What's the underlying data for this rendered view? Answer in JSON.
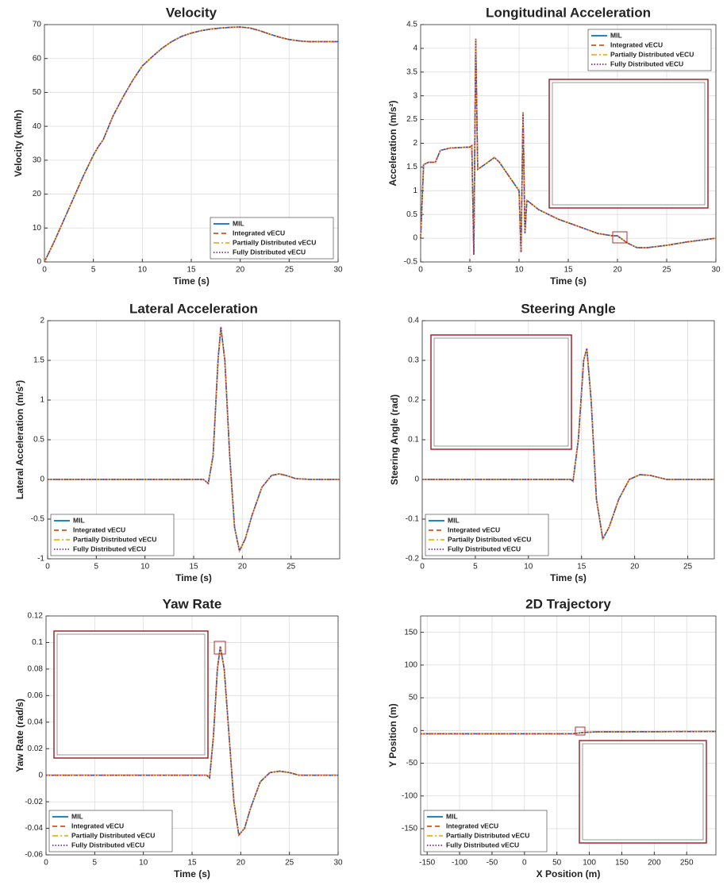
{
  "chart_data": [
    {
      "type": "line",
      "title": "Velocity",
      "xlabel": "Time (s)",
      "ylabel": "Velocity (km/h)",
      "xlim": [
        0,
        30
      ],
      "ylim": [
        0,
        70
      ],
      "xticks": [
        0,
        5,
        10,
        15,
        20,
        25,
        30
      ],
      "yticks": [
        0,
        10,
        20,
        30,
        40,
        50,
        60,
        70
      ],
      "grid": true,
      "legend": "southeast",
      "x": [
        0,
        1,
        2,
        3,
        4,
        5,
        5.5,
        6,
        7,
        8,
        9,
        10,
        11,
        12,
        13,
        14,
        15,
        16,
        17,
        18,
        19,
        20,
        21,
        22,
        23,
        24,
        25,
        26,
        27,
        28,
        29,
        30
      ],
      "series": [
        {
          "name": "MIL",
          "color": "#0072bd",
          "style": "solid",
          "values": [
            0,
            6,
            12.5,
            19,
            25.5,
            31.5,
            34,
            36,
            43,
            48.5,
            53.5,
            57.8,
            60.5,
            63,
            65,
            66.5,
            67.5,
            68.2,
            68.7,
            69,
            69.2,
            69.3,
            69,
            68.2,
            67.2,
            66.3,
            65.6,
            65.2,
            65,
            65,
            65,
            65
          ]
        },
        {
          "name": "Integrated vECU",
          "color": "#d95319",
          "style": "dashed",
          "values": [
            0,
            6,
            12.5,
            19,
            25.5,
            31.5,
            34,
            36,
            43,
            48.5,
            53.5,
            57.8,
            60.5,
            63,
            65,
            66.5,
            67.5,
            68.2,
            68.7,
            69,
            69.2,
            69.3,
            69,
            68.2,
            67.2,
            66.3,
            65.6,
            65.2,
            65,
            65,
            65,
            65
          ]
        },
        {
          "name": "Partially Distributed vECU",
          "color": "#edb120",
          "style": "dashdot",
          "values": [
            0,
            6,
            12.5,
            19,
            25.5,
            31.5,
            34,
            36,
            43,
            48.5,
            53.5,
            57.8,
            60.5,
            63,
            65,
            66.5,
            67.5,
            68.2,
            68.7,
            69,
            69.2,
            69.3,
            69,
            68.2,
            67.2,
            66.3,
            65.6,
            65.2,
            65,
            65,
            65,
            65
          ]
        },
        {
          "name": "Fully Distributed vECU",
          "color": "#7e2f8e",
          "style": "dotted",
          "values": [
            0,
            6,
            12.5,
            19,
            25.5,
            31.5,
            34,
            36,
            43,
            48.5,
            53.5,
            57.8,
            60.5,
            63,
            65,
            66.5,
            67.5,
            68.2,
            68.7,
            69,
            69.2,
            69.3,
            69,
            68.2,
            67.2,
            66.3,
            65.6,
            65.2,
            65,
            65,
            65,
            65
          ]
        }
      ]
    },
    {
      "type": "line",
      "title": "Longitudinal Acceleration",
      "xlabel": "Time (s)",
      "ylabel": "Acceleration (m/s²)",
      "xlim": [
        0,
        30
      ],
      "ylim": [
        -0.5,
        4.5
      ],
      "xticks": [
        0,
        5,
        10,
        15,
        20,
        25,
        30
      ],
      "yticks": [
        -0.5,
        0,
        0.5,
        1,
        1.5,
        2,
        2.5,
        3,
        3.5,
        4,
        4.5
      ],
      "grid": true,
      "legend": "northeast",
      "x": [
        0,
        0.3,
        0.8,
        1.5,
        2,
        3,
        5,
        5.2,
        5.4,
        5.6,
        5.8,
        6.5,
        7.5,
        8,
        9,
        10,
        10.2,
        10.4,
        10.6,
        10.8,
        12,
        14,
        16,
        18,
        19.5,
        20,
        21,
        22,
        23,
        25,
        27,
        30
      ],
      "series": [
        {
          "name": "MIL",
          "color": "#0072bd",
          "style": "solid",
          "values": [
            0,
            1.55,
            1.6,
            1.6,
            1.85,
            1.9,
            1.92,
            1.95,
            -0.35,
            4.2,
            1.45,
            1.55,
            1.7,
            1.6,
            1.3,
            1.0,
            -0.3,
            2.65,
            0.1,
            0.8,
            0.6,
            0.4,
            0.25,
            0.1,
            0.05,
            0.05,
            -0.1,
            -0.2,
            -0.2,
            -0.15,
            -0.08,
            0
          ]
        },
        {
          "name": "Integrated vECU",
          "color": "#d95319",
          "style": "dashed",
          "values": [
            0,
            1.55,
            1.6,
            1.6,
            1.85,
            1.9,
            1.92,
            1.95,
            -0.35,
            4.2,
            1.45,
            1.55,
            1.7,
            1.6,
            1.3,
            1.0,
            -0.3,
            2.65,
            0.1,
            0.8,
            0.6,
            0.4,
            0.25,
            0.1,
            0.05,
            0.05,
            -0.1,
            -0.2,
            -0.2,
            -0.15,
            -0.08,
            0
          ]
        },
        {
          "name": "Partially Distributed vECU",
          "color": "#edb120",
          "style": "dashdot",
          "values": [
            0,
            1.55,
            1.6,
            1.6,
            1.85,
            1.9,
            1.92,
            1.95,
            -0.35,
            4.2,
            1.45,
            1.55,
            1.7,
            1.6,
            1.3,
            1.0,
            -0.3,
            2.65,
            0.1,
            0.8,
            0.6,
            0.4,
            0.25,
            0.1,
            0.05,
            0.05,
            -0.1,
            -0.2,
            -0.2,
            -0.15,
            -0.08,
            0
          ]
        },
        {
          "name": "Fully Distributed vECU",
          "color": "#7e2f8e",
          "style": "dotted",
          "values": [
            0,
            1.55,
            1.6,
            1.6,
            1.85,
            1.9,
            1.92,
            1.95,
            -0.35,
            4.2,
            1.45,
            1.55,
            1.7,
            1.6,
            1.3,
            1.0,
            -0.3,
            2.65,
            0.1,
            0.8,
            0.6,
            0.4,
            0.25,
            0.1,
            0.05,
            0.05,
            -0.1,
            -0.2,
            -0.2,
            -0.15,
            -0.08,
            0
          ]
        }
      ]
    },
    {
      "type": "line",
      "title": "Lateral Acceleration",
      "xlabel": "Time (s)",
      "ylabel": "Lateral Acceleration (m/s²)",
      "xlim": [
        0,
        30
      ],
      "ylim": [
        -1,
        2
      ],
      "xticks": [
        0,
        5,
        10,
        15,
        20,
        25
      ],
      "yticks": [
        -1,
        -0.5,
        0,
        0.5,
        1,
        1.5,
        2
      ],
      "grid": true,
      "legend": "southwest",
      "x": [
        0,
        16,
        16.5,
        17,
        17.5,
        17.8,
        18.2,
        18.7,
        19.2,
        19.7,
        20.3,
        21,
        22,
        23,
        23.8,
        24.5,
        25.5,
        27,
        30
      ],
      "series": [
        {
          "name": "MIL",
          "color": "#0072bd",
          "style": "solid",
          "values": [
            0,
            0,
            -0.05,
            0.3,
            1.5,
            1.92,
            1.5,
            0.3,
            -0.6,
            -0.9,
            -0.75,
            -0.45,
            -0.1,
            0.05,
            0.07,
            0.05,
            0.01,
            0,
            0
          ]
        },
        {
          "name": "Integrated vECU",
          "color": "#d95319",
          "style": "dashed",
          "values": [
            0,
            0,
            -0.05,
            0.3,
            1.5,
            1.92,
            1.5,
            0.3,
            -0.6,
            -0.9,
            -0.75,
            -0.45,
            -0.1,
            0.05,
            0.07,
            0.05,
            0.01,
            0,
            0
          ]
        },
        {
          "name": "Partially Distributed vECU",
          "color": "#edb120",
          "style": "dashdot",
          "values": [
            0,
            0,
            -0.05,
            0.3,
            1.5,
            1.92,
            1.5,
            0.3,
            -0.6,
            -0.9,
            -0.75,
            -0.45,
            -0.1,
            0.05,
            0.07,
            0.05,
            0.01,
            0,
            0
          ]
        },
        {
          "name": "Fully Distributed vECU",
          "color": "#7e2f8e",
          "style": "dotted",
          "values": [
            0,
            0,
            -0.05,
            0.3,
            1.5,
            1.92,
            1.5,
            0.3,
            -0.6,
            -0.9,
            -0.75,
            -0.45,
            -0.1,
            0.05,
            0.07,
            0.05,
            0.01,
            0,
            0
          ]
        }
      ]
    },
    {
      "type": "line",
      "title": "Steering Angle",
      "xlabel": "Time (s)",
      "ylabel": "Steering Angle (rad)",
      "xlim": [
        0,
        27.5
      ],
      "ylim": [
        -0.2,
        0.4
      ],
      "xticks": [
        0,
        5,
        10,
        15,
        20,
        25
      ],
      "yticks": [
        -0.2,
        -0.1,
        0,
        0.1,
        0.2,
        0.3,
        0.4
      ],
      "grid": true,
      "legend": "southwest",
      "x": [
        0,
        14,
        14.2,
        14.7,
        15.2,
        15.5,
        15.9,
        16.4,
        17,
        17.6,
        18.5,
        19.5,
        20.5,
        21.5,
        23,
        27.5
      ],
      "series": [
        {
          "name": "MIL",
          "color": "#0072bd",
          "style": "solid",
          "values": [
            0,
            0,
            -0.005,
            0.1,
            0.3,
            0.33,
            0.2,
            -0.05,
            -0.15,
            -0.12,
            -0.05,
            0,
            0.012,
            0.01,
            0,
            0
          ]
        },
        {
          "name": "Integrated vECU",
          "color": "#d95319",
          "style": "dashed",
          "values": [
            0,
            0,
            -0.005,
            0.1,
            0.3,
            0.33,
            0.2,
            -0.05,
            -0.15,
            -0.12,
            -0.05,
            0,
            0.012,
            0.01,
            0,
            0
          ]
        },
        {
          "name": "Partially Distributed vECU",
          "color": "#edb120",
          "style": "dashdot",
          "values": [
            0,
            0,
            -0.005,
            0.1,
            0.3,
            0.33,
            0.2,
            -0.05,
            -0.15,
            -0.12,
            -0.05,
            0,
            0.012,
            0.01,
            0,
            0
          ]
        },
        {
          "name": "Fully Distributed vECU",
          "color": "#7e2f8e",
          "style": "dotted",
          "values": [
            0,
            0,
            -0.005,
            0.1,
            0.3,
            0.33,
            0.2,
            -0.05,
            -0.15,
            -0.12,
            -0.05,
            0,
            0.012,
            0.01,
            0,
            0
          ]
        }
      ]
    },
    {
      "type": "line",
      "title": "Yaw Rate",
      "xlabel": "Time (s)",
      "ylabel": "Yaw Rate (rad/s)",
      "xlim": [
        0,
        30
      ],
      "ylim": [
        -0.06,
        0.12
      ],
      "xticks": [
        0,
        5,
        10,
        15,
        20,
        25,
        30
      ],
      "yticks": [
        -0.06,
        -0.04,
        -0.02,
        0,
        0.02,
        0.04,
        0.06,
        0.08,
        0.1,
        0.12
      ],
      "grid": true,
      "legend": "southwest",
      "x": [
        0,
        16.5,
        16.8,
        17.2,
        17.6,
        17.9,
        18.3,
        18.8,
        19.3,
        19.8,
        20.4,
        21,
        22,
        23,
        24,
        25,
        26,
        30
      ],
      "series": [
        {
          "name": "MIL",
          "color": "#0072bd",
          "style": "solid",
          "values": [
            0,
            0,
            -0.002,
            0.03,
            0.08,
            0.097,
            0.08,
            0.03,
            -0.02,
            -0.045,
            -0.04,
            -0.025,
            -0.005,
            0.002,
            0.003,
            0.002,
            0,
            0
          ]
        },
        {
          "name": "Integrated vECU",
          "color": "#d95319",
          "style": "dashed",
          "values": [
            0,
            0,
            -0.002,
            0.03,
            0.08,
            0.097,
            0.08,
            0.03,
            -0.02,
            -0.045,
            -0.04,
            -0.025,
            -0.005,
            0.002,
            0.003,
            0.002,
            0,
            0
          ]
        },
        {
          "name": "Partially Distributed vECU",
          "color": "#edb120",
          "style": "dashdot",
          "values": [
            0,
            0,
            -0.002,
            0.03,
            0.08,
            0.097,
            0.08,
            0.03,
            -0.02,
            -0.045,
            -0.04,
            -0.025,
            -0.005,
            0.002,
            0.003,
            0.002,
            0,
            0
          ]
        },
        {
          "name": "Fully Distributed vECU",
          "color": "#7e2f8e",
          "style": "dotted",
          "values": [
            0,
            0,
            -0.002,
            0.03,
            0.08,
            0.097,
            0.08,
            0.03,
            -0.02,
            -0.045,
            -0.04,
            -0.025,
            -0.005,
            0.002,
            0.003,
            0.002,
            0,
            0
          ]
        }
      ]
    },
    {
      "type": "line",
      "title": "2D Trajectory",
      "xlabel": "X Position (m)",
      "ylabel": "Y Position (m)",
      "xlim": [
        -160,
        295
      ],
      "ylim": [
        -190,
        175
      ],
      "xticks": [
        -150,
        -100,
        -50,
        0,
        50,
        100,
        150,
        200,
        250
      ],
      "yticks": [
        -150,
        -100,
        -50,
        0,
        50,
        100,
        150
      ],
      "grid": true,
      "legend": "southwest",
      "x": [
        -160,
        0,
        75,
        90,
        110,
        200,
        295
      ],
      "series": [
        {
          "name": "MIL",
          "color": "#0072bd",
          "style": "solid",
          "values": [
            -5,
            -5,
            -5,
            -3,
            -2,
            -1.8,
            -1.5
          ]
        },
        {
          "name": "Integrated vECU",
          "color": "#d95319",
          "style": "dashed",
          "values": [
            -5,
            -5,
            -5,
            -3,
            -2,
            -1.8,
            -1.5
          ]
        },
        {
          "name": "Partially Distributed vECU",
          "color": "#edb120",
          "style": "dashdot",
          "values": [
            -5,
            -5,
            -5,
            -3,
            -2,
            -1.8,
            -1.5
          ]
        },
        {
          "name": "Fully Distributed vECU",
          "color": "#7e2f8e",
          "style": "dotted",
          "values": [
            -5,
            -5,
            -5,
            -3,
            -2,
            -1.8,
            -1.5
          ]
        }
      ]
    }
  ]
}
